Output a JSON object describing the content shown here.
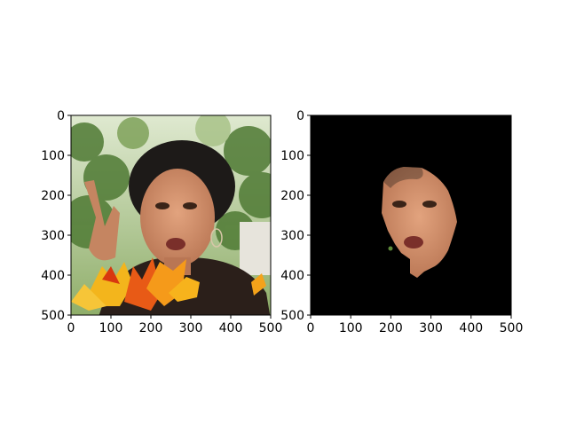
{
  "figure": {
    "background": "#ffffff",
    "axis_color": "#000000"
  },
  "chart_data": [
    {
      "type": "image",
      "title": "",
      "xlabel": "",
      "ylabel": "",
      "xlim": [
        0,
        500
      ],
      "ylim": [
        500,
        0
      ],
      "xticks": [
        0,
        100,
        200,
        300,
        400,
        500
      ],
      "yticks": [
        0,
        100,
        200,
        300,
        400,
        500
      ],
      "grid": false,
      "image": {
        "content": "photo-with-leaves-overlay",
        "background_color": "#6f8f52"
      }
    },
    {
      "type": "image",
      "title": "",
      "xlabel": "",
      "ylabel": "",
      "xlim": [
        0,
        500
      ],
      "ylim": [
        500,
        0
      ],
      "xticks": [
        0,
        100,
        200,
        300,
        400,
        500
      ],
      "yticks": [
        0,
        100,
        200,
        300,
        400,
        500
      ],
      "grid": false,
      "image": {
        "content": "segmented-face-mask",
        "background_color": "#000000"
      }
    }
  ]
}
